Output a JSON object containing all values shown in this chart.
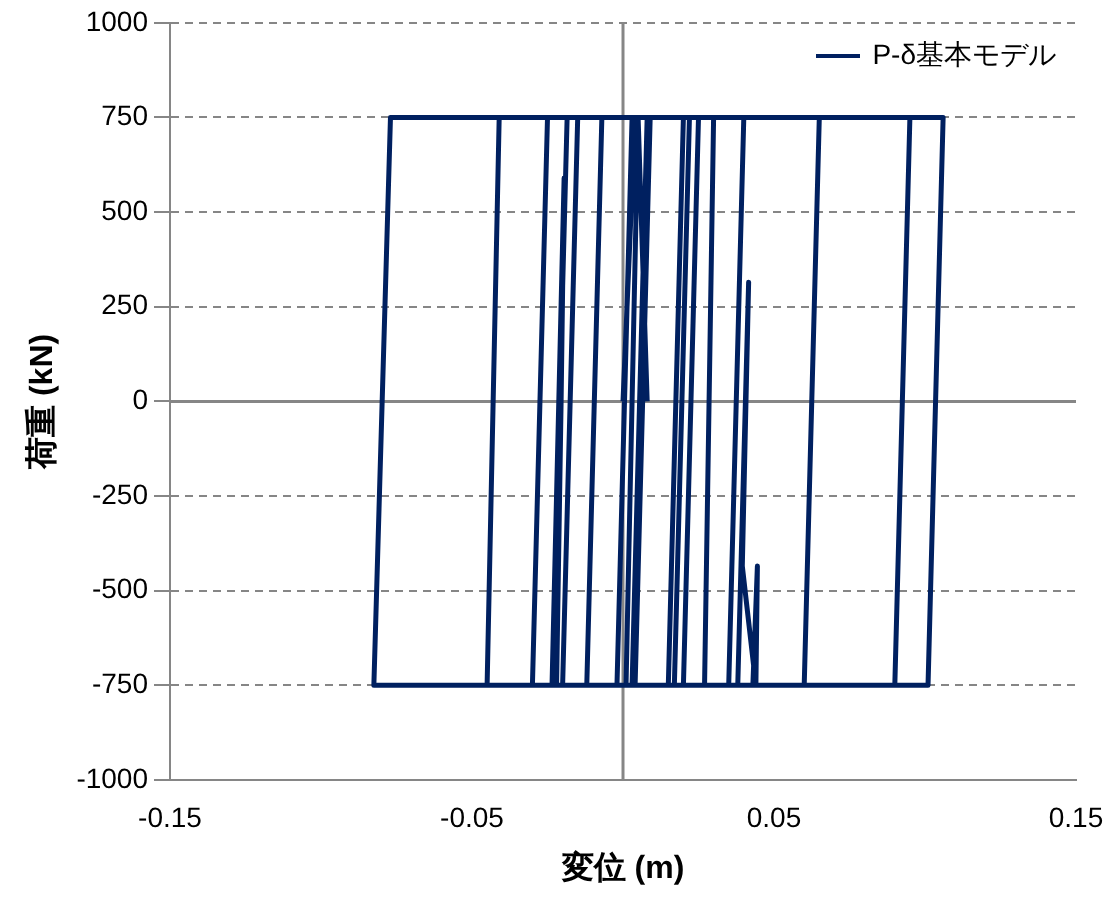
{
  "chart_data": {
    "type": "line",
    "xlabel": "変位 (m)",
    "ylabel": "荷重 (kN)",
    "x": [
      0,
      0.004,
      0.008,
      0.003,
      -0.002,
      0.003,
      0.02,
      0.015,
      -0.012,
      -0.007,
      0.025,
      0.02,
      -0.02,
      -0.015,
      0.04,
      0.035,
      -0.03,
      -0.025,
      0.065,
      0.06,
      -0.045,
      -0.041,
      0.095,
      0.09,
      -0.0825,
      -0.077,
      0.106,
      0.101,
      0.038,
      0.0416,
      0.0395,
      0.044,
      0.0445,
      0.043,
      0.004,
      0.009,
      0.022,
      0.017,
      -0.022,
      -0.0205,
      -0.0195,
      -0.0235,
      -0.0185,
      0.006,
      0.011,
      0.03,
      0.027,
      0.001,
      0.005,
      0.008
    ],
    "series": [
      {
        "name": "P-δ基本モデル",
        "color": "#002060",
        "values": [
          0,
          750,
          750,
          -750,
          -750,
          750,
          750,
          -750,
          -750,
          750,
          750,
          -750,
          -750,
          750,
          750,
          -750,
          -750,
          750,
          750,
          -750,
          -750,
          750,
          750,
          -750,
          -750,
          750,
          750,
          -750,
          -750,
          315,
          -435,
          -750,
          -435,
          -750,
          -750,
          750,
          750,
          -750,
          -750,
          0,
          590,
          -750,
          750,
          750,
          750,
          750,
          -750,
          -750,
          750,
          0
        ]
      }
    ],
    "xlim": [
      -0.15,
      0.15
    ],
    "xticks": [
      -0.15,
      -0.05,
      0.05,
      0.15
    ],
    "ylim": [
      -1000,
      1000
    ],
    "yticks": [
      -1000,
      -750,
      -500,
      -250,
      0,
      250,
      500,
      750,
      1000
    ],
    "grid": "y",
    "legend": "top right",
    "marker": "none",
    "line_style": "solid"
  }
}
